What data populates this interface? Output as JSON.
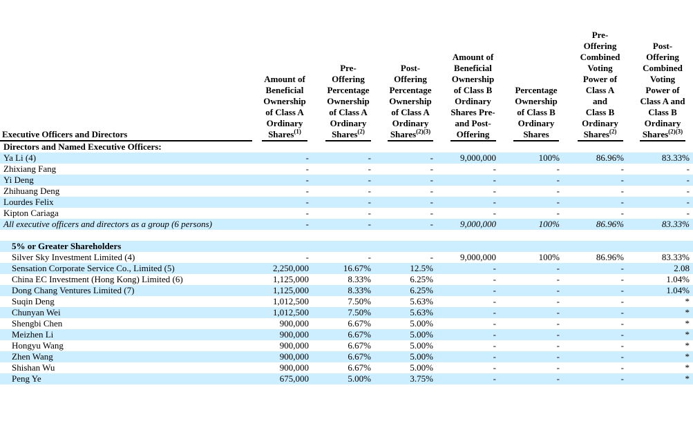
{
  "colors": {
    "row_highlight": "#cceeff",
    "text": "#000000",
    "rule": "#000000"
  },
  "table": {
    "label_header": "Executive Officers and Directors",
    "columns": [
      {
        "lines": [
          "Amount of",
          "Beneficial",
          "Ownership",
          "of Class A",
          "Ordinary",
          "Shares"
        ],
        "superscript": "(1)"
      },
      {
        "lines": [
          "Pre-",
          "Offering",
          "Percentage",
          "Ownership",
          "of Class A",
          "Ordinary",
          "Shares"
        ],
        "superscript": "(2)"
      },
      {
        "lines": [
          "Post-",
          "Offering",
          "Percentage",
          "Ownership",
          "of Class A",
          "Ordinary",
          "Shares"
        ],
        "superscript": "(2)(3)"
      },
      {
        "lines": [
          "Amount of",
          "Beneficial",
          "Ownership",
          "of Class B",
          "Ordinary",
          "Shares Pre-",
          "and Post-",
          "Offering"
        ],
        "superscript": ""
      },
      {
        "lines": [
          "Percentage",
          "Ownership",
          "of Class B",
          "Ordinary",
          "Shares"
        ],
        "superscript": ""
      },
      {
        "lines": [
          "Pre-",
          "Offering",
          "Combined",
          "Voting",
          "Power of",
          "Class A",
          "and",
          "Class B",
          "Ordinary",
          "Shares"
        ],
        "superscript": "(2)"
      },
      {
        "lines": [
          "Post-",
          "Offering",
          "Combined",
          "Voting",
          "Power of",
          "Class A and",
          "Class B",
          "Ordinary",
          "Shares"
        ],
        "superscript": "(2)(3)"
      }
    ],
    "rows": [
      {
        "type": "section",
        "label": "Directors and Named Executive Officers:",
        "shaded": false,
        "indent": false,
        "values": []
      },
      {
        "type": "data",
        "label": "Ya Li (4)",
        "shaded": true,
        "indent": false,
        "values": [
          "-",
          "-",
          "-",
          "9,000,000",
          "100%",
          "86.96%",
          "83.33%"
        ]
      },
      {
        "type": "data",
        "label": "Zhixiang Fang",
        "shaded": false,
        "indent": false,
        "values": [
          "-",
          "-",
          "-",
          "-",
          "-",
          "-",
          "-"
        ]
      },
      {
        "type": "data",
        "label": "Yi Deng",
        "shaded": true,
        "indent": false,
        "values": [
          "-",
          "-",
          "-",
          "-",
          "-",
          "-",
          "-"
        ]
      },
      {
        "type": "data",
        "label": "Zhihuang Deng",
        "shaded": false,
        "indent": false,
        "values": [
          "-",
          "-",
          "-",
          "-",
          "-",
          "-",
          "-"
        ]
      },
      {
        "type": "data",
        "label": "Lourdes Felix",
        "shaded": true,
        "indent": false,
        "values": [
          "-",
          "-",
          "-",
          "-",
          "-",
          "-",
          "-"
        ]
      },
      {
        "type": "data",
        "label": "Kipton Cariaga",
        "shaded": false,
        "indent": false,
        "values": [
          "-",
          "-",
          "-",
          "-",
          "-",
          "-",
          "-"
        ]
      },
      {
        "type": "group",
        "label": "All executive officers and directors as a group (6 persons)",
        "shaded": true,
        "indent": false,
        "values": [
          "-",
          "-",
          "-",
          "9,000,000",
          "100%",
          "86.96%",
          "83.33%"
        ]
      },
      {
        "type": "spacer",
        "label": "",
        "shaded": false,
        "indent": false,
        "values": []
      },
      {
        "type": "section",
        "label": "5% or Greater Shareholders",
        "shaded": true,
        "indent": true,
        "values": []
      },
      {
        "type": "data",
        "label": "Silver Sky Investment Limited (4)",
        "shaded": false,
        "indent": true,
        "values": [
          "-",
          "-",
          "-",
          "9,000,000",
          "100%",
          "86.96%",
          "83.33%"
        ]
      },
      {
        "type": "data",
        "label": "Sensation Corporate Service Co., Limited (5)",
        "shaded": true,
        "indent": true,
        "values": [
          "2,250,000",
          "16.67%",
          "12.5%",
          "-",
          "-",
          "-",
          "2.08"
        ]
      },
      {
        "type": "data",
        "label": "China EC Investment (Hong Kong) Limited (6)",
        "shaded": false,
        "indent": true,
        "values": [
          "1,125,000",
          "8.33%",
          "6.25%",
          "-",
          "-",
          "-",
          "1.04%"
        ]
      },
      {
        "type": "data",
        "label": "Dong Chang Ventures Limited (7)",
        "shaded": true,
        "indent": true,
        "values": [
          "1,125,000",
          "8.33%",
          "6.25%",
          "-",
          "-",
          "-",
          "1.04%"
        ]
      },
      {
        "type": "data",
        "label": "Suqin Deng",
        "shaded": false,
        "indent": true,
        "values": [
          "1,012,500",
          "7.50%",
          "5.63%",
          "-",
          "-",
          "-",
          "*"
        ]
      },
      {
        "type": "data",
        "label": "Chunyan Wei",
        "shaded": true,
        "indent": true,
        "values": [
          "1,012,500",
          "7.50%",
          "5.63%",
          "-",
          "-",
          "-",
          "*"
        ]
      },
      {
        "type": "data",
        "label": "Shengbi Chen",
        "shaded": false,
        "indent": true,
        "values": [
          "900,000",
          "6.67%",
          "5.00%",
          "-",
          "-",
          "-",
          "*"
        ]
      },
      {
        "type": "data",
        "label": "Meizhen Li",
        "shaded": true,
        "indent": true,
        "values": [
          "900,000",
          "6.67%",
          "5.00%",
          "-",
          "-",
          "-",
          "*"
        ]
      },
      {
        "type": "data",
        "label": "Hongyu Wang",
        "shaded": false,
        "indent": true,
        "values": [
          "900,000",
          "6.67%",
          "5.00%",
          "-",
          "-",
          "-",
          "*"
        ]
      },
      {
        "type": "data",
        "label": "Zhen Wang",
        "shaded": true,
        "indent": true,
        "values": [
          "900,000",
          "6.67%",
          "5.00%",
          "-",
          "-",
          "-",
          "*"
        ]
      },
      {
        "type": "data",
        "label": "Shishan Wu",
        "shaded": false,
        "indent": true,
        "values": [
          "900,000",
          "6.67%",
          "5.00%",
          "-",
          "-",
          "-",
          "*"
        ]
      },
      {
        "type": "data",
        "label": "Peng Ye",
        "shaded": true,
        "indent": true,
        "values": [
          "675,000",
          "5.00%",
          "3.75%",
          "-",
          "-",
          "-",
          "*"
        ]
      }
    ]
  }
}
